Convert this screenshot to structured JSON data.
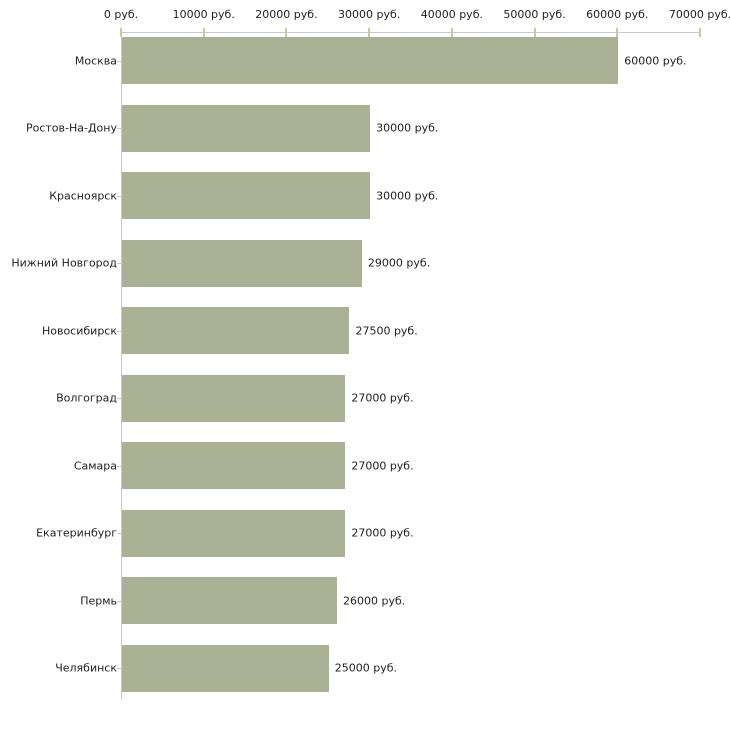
{
  "chart_data": {
    "type": "bar",
    "orientation": "horizontal",
    "title": "",
    "categories": [
      "Москва",
      "Ростов-На-Дону",
      "Красноярск",
      "Нижний Новгород",
      "Новосибирск",
      "Волгоград",
      "Самара",
      "Екатеринбург",
      "Пермь",
      "Челябинск"
    ],
    "values": [
      60000,
      30000,
      30000,
      29000,
      27500,
      27000,
      27000,
      27000,
      26000,
      25000
    ],
    "value_labels": [
      "60000 руб.",
      "30000 руб.",
      "30000 руб.",
      "29000 руб.",
      "27500 руб.",
      "27000 руб.",
      "27000 руб.",
      "27000 руб.",
      "26000 руб.",
      "25000 руб."
    ],
    "unit": "руб.",
    "x_axis": {
      "position": "top",
      "min": 0,
      "max": 70000,
      "step": 10000,
      "tick_labels": [
        "0 руб.",
        "10000 руб.",
        "20000 руб.",
        "30000 руб.",
        "40000 руб.",
        "50000 руб.",
        "60000 руб.",
        "70000 руб."
      ]
    },
    "legend": "none",
    "grid": "off",
    "colors": {
      "bar": "#aab194",
      "axis_line": "#c9c9c9",
      "value_axis_tick": "#c9c99c",
      "category_tick": "#cccccc",
      "text": "#1f1f1f",
      "background": "#ffffff"
    }
  }
}
